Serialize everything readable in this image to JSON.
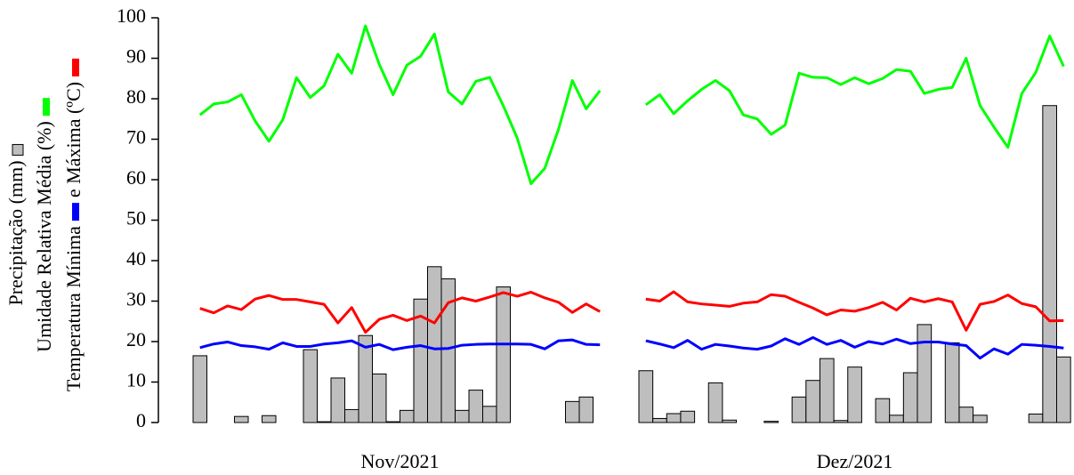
{
  "chart_data": {
    "type": "bar-line",
    "ylim": [
      0,
      100
    ],
    "yticks": [
      0,
      10,
      20,
      30,
      40,
      50,
      60,
      70,
      80,
      90,
      100
    ],
    "series": [
      {
        "name": "Precipitação (mm)",
        "color": "#bebebe",
        "kind": "bar"
      },
      {
        "name": "Umidade Relativa Média (%)",
        "color": "#00ff00",
        "kind": "line"
      },
      {
        "name": "Temperatura Mínima",
        "color": "#0000ff",
        "kind": "line"
      },
      {
        "name": "e Máxima (ºC)",
        "color": "#ff0000",
        "kind": "line"
      }
    ],
    "panels": [
      {
        "xlabel": "Nov/2021",
        "values": [
          [
            16.5,
            0,
            0,
            1.5,
            0,
            1.7,
            0,
            0,
            18,
            0.2,
            11,
            3.2,
            21.5,
            12,
            0.2,
            3,
            30.5,
            38.5,
            35.5,
            3,
            8,
            4,
            33.5,
            0,
            0,
            0,
            0,
            5.2,
            6.3,
            0
          ],
          [
            76,
            78.7,
            79.2,
            81,
            74.5,
            69.5,
            74.8,
            85.2,
            80.3,
            83.2,
            91,
            86.3,
            98,
            88.5,
            81,
            88.3,
            90.5,
            96,
            81.7,
            78.7,
            84.3,
            85.3,
            78.2,
            70.3,
            59,
            62.8,
            72.5,
            84.5,
            77.5,
            82
          ],
          [
            18.5,
            19.4,
            19.9,
            19.0,
            18.7,
            18.1,
            19.7,
            18.8,
            18.8,
            19.4,
            19.7,
            20.2,
            18.6,
            19.3,
            18.0,
            18.6,
            19.0,
            18.2,
            18.3,
            19.1,
            19.3,
            19.4,
            19.4,
            19.4,
            19.3,
            18.2,
            20.2,
            20.4,
            19.3,
            19.2
          ],
          [
            28.2,
            27.1,
            28.8,
            27.9,
            30.5,
            31.4,
            30.4,
            30.4,
            29.8,
            29.2,
            24.6,
            28.4,
            22.3,
            25.5,
            26.5,
            25.2,
            26.3,
            24.6,
            29.6,
            30.8,
            30.0,
            31.0,
            32.1,
            31.2,
            32.2,
            30.8,
            29.7,
            27.2,
            29.3,
            27.4
          ]
        ]
      },
      {
        "xlabel": "Dez/2021",
        "values": [
          [
            12.8,
            1.0,
            2.2,
            2.8,
            0,
            9.8,
            0.6,
            0,
            0,
            0.3,
            0,
            6.3,
            10.4,
            15.8,
            0.5,
            13.7,
            0,
            5.9,
            1.8,
            12.3,
            24.2,
            0,
            19.7,
            3.8,
            1.8,
            0,
            0,
            0,
            2.1,
            78.3,
            16.2
          ],
          [
            78.5,
            81,
            76.3,
            79.5,
            82.3,
            84.5,
            82,
            76,
            75,
            71.2,
            73.5,
            86.3,
            85.3,
            85.2,
            83.5,
            85.2,
            83.7,
            85,
            87.2,
            86.8,
            81.3,
            82.3,
            82.8,
            90,
            78.3,
            73,
            68,
            81.3,
            86.5,
            95.5,
            88
          ],
          [
            20.2,
            19.4,
            18.5,
            20.3,
            18.1,
            19.3,
            18.9,
            18.4,
            18.1,
            18.9,
            20.7,
            19.3,
            21.0,
            19.3,
            20.3,
            18.6,
            20.0,
            19.4,
            20.6,
            19.5,
            19.9,
            19.9,
            19.4,
            19.0,
            15.9,
            18.2,
            16.9,
            19.3,
            19.1,
            18.8,
            18.4
          ],
          [
            30.5,
            30,
            32.3,
            29.8,
            29.3,
            29,
            28.7,
            29.5,
            29.8,
            31.6,
            31.2,
            29.7,
            28.3,
            26.6,
            27.8,
            27.5,
            28.4,
            29.7,
            27.8,
            30.7,
            29.8,
            30.6,
            29.8,
            22.8,
            29.2,
            29.9,
            31.5,
            29.4,
            28.6,
            25.1,
            25.2
          ]
        ]
      }
    ]
  }
}
